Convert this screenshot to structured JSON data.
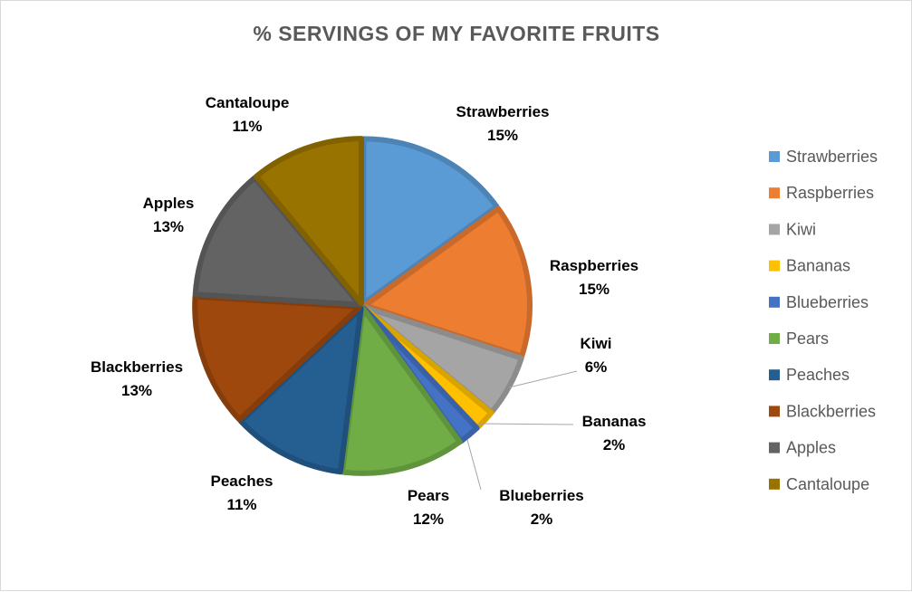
{
  "chart_data": {
    "type": "pie",
    "title": "% SERVINGS OF MY FAVORITE FRUITS",
    "categories": [
      "Strawberries",
      "Raspberries",
      "Kiwi",
      "Bananas",
      "Blueberries",
      "Pears",
      "Peaches",
      "Blackberries",
      "Apples",
      "Cantaloupe"
    ],
    "values": [
      15,
      15,
      6,
      2,
      2,
      12,
      11,
      13,
      13,
      11
    ],
    "labels": [
      "15%",
      "15%",
      "6%",
      "2%",
      "2%",
      "12%",
      "11%",
      "13%",
      "13%",
      "11%"
    ],
    "colors": [
      "#5b9bd5",
      "#ed7d31",
      "#a5a5a5",
      "#ffc000",
      "#4472c4",
      "#70ad47",
      "#255e91",
      "#9e480e",
      "#636363",
      "#997300"
    ],
    "legend_position": "right"
  }
}
